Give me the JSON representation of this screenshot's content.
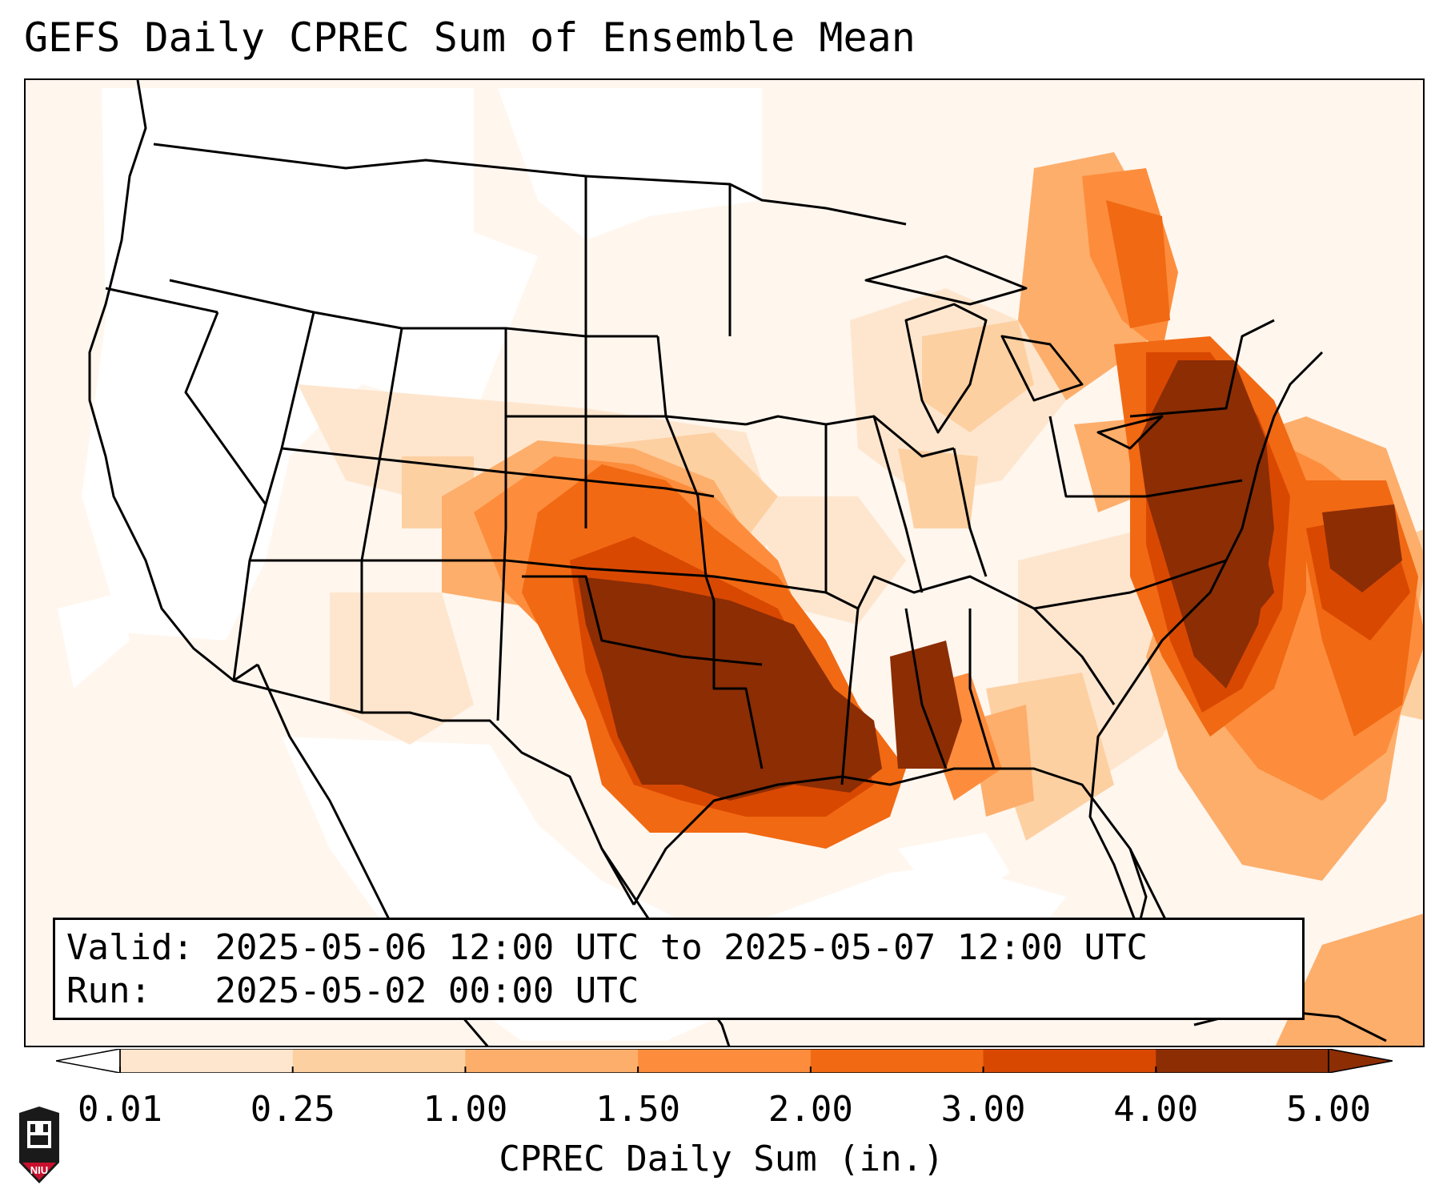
{
  "title": "GEFS Daily CPREC Sum of Ensemble Mean",
  "info": {
    "valid_label": "Valid:",
    "valid_value": "2025-05-06 12:00 UTC to 2025-05-07 12:00 UTC",
    "run_label": "Run:",
    "run_value": "2025-05-02 00:00 UTC"
  },
  "colorbar": {
    "label": "CPREC Daily Sum (in.)",
    "ticks": [
      "0.01",
      "0.25",
      "1.00",
      "1.50",
      "2.00",
      "3.00",
      "4.00",
      "5.00"
    ],
    "colors": [
      "#fff5eb",
      "#fee6ce",
      "#fdd0a2",
      "#fdae6b",
      "#fd8d3c",
      "#f16913",
      "#d94801",
      "#8c2d04"
    ],
    "extend_low_color": "#ffffff",
    "extend_high_color": "#8c2d04"
  },
  "logo": {
    "text": "NIU",
    "icon": "niu-logo-icon"
  }
}
